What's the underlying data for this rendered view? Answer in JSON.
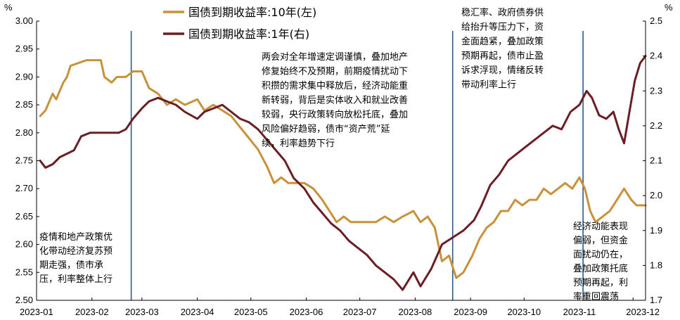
{
  "chart_data": {
    "type": "line",
    "title": "",
    "left_axis": {
      "unit": "%",
      "ylim": [
        2.5,
        3.0
      ],
      "ticks": [
        "2.50",
        "2.55",
        "2.60",
        "2.65",
        "2.70",
        "2.75",
        "2.80",
        "2.85",
        "2.90",
        "2.95",
        "3.00"
      ]
    },
    "right_axis": {
      "unit": "%",
      "ylim": [
        1.7,
        2.5
      ],
      "ticks": [
        "1.7",
        "1.8",
        "1.9",
        "2.0",
        "2.1",
        "2.2",
        "2.3",
        "2.4",
        "2.5"
      ]
    },
    "x_ticks": [
      "2023-01",
      "2023-02",
      "2023-03",
      "2023-04",
      "2023-05",
      "2023-06",
      "2023-07",
      "2023-08",
      "2023-09",
      "2023-10",
      "2023-11",
      "2023-12"
    ],
    "x_range": [
      "2023-01-01",
      "2023-12-08"
    ],
    "colors": {
      "series_10y": "#c8913a",
      "series_1y": "#6b1f24",
      "divider": "#2f5a86"
    },
    "series": [
      {
        "name": "国债到期收益率:10年(左)",
        "axis": "left",
        "points": [
          [
            "2023-01-03",
            2.83
          ],
          [
            "2023-01-06",
            2.84
          ],
          [
            "2023-01-10",
            2.87
          ],
          [
            "2023-01-12",
            2.86
          ],
          [
            "2023-01-16",
            2.89
          ],
          [
            "2023-01-18",
            2.9
          ],
          [
            "2023-01-20",
            2.92
          ],
          [
            "2023-01-29",
            2.93
          ],
          [
            "2023-02-06",
            2.93
          ],
          [
            "2023-02-08",
            2.9
          ],
          [
            "2023-02-12",
            2.89
          ],
          [
            "2023-02-15",
            2.9
          ],
          [
            "2023-02-20",
            2.9
          ],
          [
            "2023-02-24",
            2.91
          ],
          [
            "2023-03-01",
            2.91
          ],
          [
            "2023-03-05",
            2.88
          ],
          [
            "2023-03-10",
            2.87
          ],
          [
            "2023-03-15",
            2.85
          ],
          [
            "2023-03-20",
            2.86
          ],
          [
            "2023-03-25",
            2.85
          ],
          [
            "2023-04-01",
            2.86
          ],
          [
            "2023-04-05",
            2.84
          ],
          [
            "2023-04-10",
            2.85
          ],
          [
            "2023-04-15",
            2.84
          ],
          [
            "2023-04-20",
            2.83
          ],
          [
            "2023-04-25",
            2.81
          ],
          [
            "2023-04-30",
            2.79
          ],
          [
            "2023-05-05",
            2.77
          ],
          [
            "2023-05-10",
            2.74
          ],
          [
            "2023-05-14",
            2.71
          ],
          [
            "2023-05-18",
            2.72
          ],
          [
            "2023-05-22",
            2.71
          ],
          [
            "2023-05-26",
            2.71
          ],
          [
            "2023-05-31",
            2.71
          ],
          [
            "2023-06-05",
            2.7
          ],
          [
            "2023-06-10",
            2.68
          ],
          [
            "2023-06-14",
            2.66
          ],
          [
            "2023-06-18",
            2.64
          ],
          [
            "2023-06-22",
            2.65
          ],
          [
            "2023-06-26",
            2.64
          ],
          [
            "2023-06-30",
            2.64
          ],
          [
            "2023-07-05",
            2.64
          ],
          [
            "2023-07-10",
            2.64
          ],
          [
            "2023-07-15",
            2.65
          ],
          [
            "2023-07-20",
            2.64
          ],
          [
            "2023-07-25",
            2.65
          ],
          [
            "2023-07-31",
            2.66
          ],
          [
            "2023-08-04",
            2.64
          ],
          [
            "2023-08-08",
            2.65
          ],
          [
            "2023-08-12",
            2.63
          ],
          [
            "2023-08-16",
            2.57
          ],
          [
            "2023-08-20",
            2.58
          ],
          [
            "2023-08-24",
            2.54
          ],
          [
            "2023-08-28",
            2.55
          ],
          [
            "2023-09-02",
            2.58
          ],
          [
            "2023-09-06",
            2.61
          ],
          [
            "2023-09-10",
            2.63
          ],
          [
            "2023-09-14",
            2.64
          ],
          [
            "2023-09-18",
            2.66
          ],
          [
            "2023-09-22",
            2.66
          ],
          [
            "2023-09-26",
            2.68
          ],
          [
            "2023-09-30",
            2.67
          ],
          [
            "2023-10-04",
            2.68
          ],
          [
            "2023-10-08",
            2.68
          ],
          [
            "2023-10-12",
            2.7
          ],
          [
            "2023-10-16",
            2.69
          ],
          [
            "2023-10-20",
            2.7
          ],
          [
            "2023-10-24",
            2.71
          ],
          [
            "2023-10-28",
            2.7
          ],
          [
            "2023-11-01",
            2.72
          ],
          [
            "2023-11-04",
            2.7
          ],
          [
            "2023-11-07",
            2.66
          ],
          [
            "2023-11-10",
            2.64
          ],
          [
            "2023-11-14",
            2.65
          ],
          [
            "2023-11-18",
            2.66
          ],
          [
            "2023-11-22",
            2.68
          ],
          [
            "2023-11-26",
            2.7
          ],
          [
            "2023-11-30",
            2.68
          ],
          [
            "2023-12-03",
            2.67
          ],
          [
            "2023-12-08",
            2.67
          ]
        ]
      },
      {
        "name": "国债到期收益率:1年(右)",
        "axis": "right",
        "points": [
          [
            "2023-01-03",
            2.1
          ],
          [
            "2023-01-06",
            2.08
          ],
          [
            "2023-01-10",
            2.09
          ],
          [
            "2023-01-14",
            2.11
          ],
          [
            "2023-01-18",
            2.12
          ],
          [
            "2023-01-22",
            2.13
          ],
          [
            "2023-01-26",
            2.17
          ],
          [
            "2023-01-31",
            2.18
          ],
          [
            "2023-02-04",
            2.18
          ],
          [
            "2023-02-08",
            2.18
          ],
          [
            "2023-02-12",
            2.18
          ],
          [
            "2023-02-16",
            2.18
          ],
          [
            "2023-02-20",
            2.19
          ],
          [
            "2023-02-24",
            2.22
          ],
          [
            "2023-03-01",
            2.25
          ],
          [
            "2023-03-05",
            2.27
          ],
          [
            "2023-03-10",
            2.28
          ],
          [
            "2023-03-15",
            2.27
          ],
          [
            "2023-03-20",
            2.26
          ],
          [
            "2023-03-25",
            2.24
          ],
          [
            "2023-04-01",
            2.22
          ],
          [
            "2023-04-05",
            2.24
          ],
          [
            "2023-04-10",
            2.25
          ],
          [
            "2023-04-15",
            2.26
          ],
          [
            "2023-04-20",
            2.24
          ],
          [
            "2023-04-25",
            2.22
          ],
          [
            "2023-04-30",
            2.21
          ],
          [
            "2023-05-05",
            2.19
          ],
          [
            "2023-05-10",
            2.16
          ],
          [
            "2023-05-15",
            2.13
          ],
          [
            "2023-05-20",
            2.1
          ],
          [
            "2023-05-25",
            2.05
          ],
          [
            "2023-05-31",
            2.02
          ],
          [
            "2023-06-05",
            1.98
          ],
          [
            "2023-06-10",
            1.95
          ],
          [
            "2023-06-15",
            1.92
          ],
          [
            "2023-06-20",
            1.9
          ],
          [
            "2023-06-25",
            1.87
          ],
          [
            "2023-06-30",
            1.85
          ],
          [
            "2023-07-05",
            1.83
          ],
          [
            "2023-07-10",
            1.8
          ],
          [
            "2023-07-15",
            1.78
          ],
          [
            "2023-07-20",
            1.76
          ],
          [
            "2023-07-25",
            1.73
          ],
          [
            "2023-07-31",
            1.78
          ],
          [
            "2023-08-04",
            1.74
          ],
          [
            "2023-08-10",
            1.79
          ],
          [
            "2023-08-16",
            1.86
          ],
          [
            "2023-08-22",
            1.88
          ],
          [
            "2023-08-28",
            1.9
          ],
          [
            "2023-09-03",
            1.93
          ],
          [
            "2023-09-07",
            1.97
          ],
          [
            "2023-09-12",
            2.03
          ],
          [
            "2023-09-17",
            2.06
          ],
          [
            "2023-09-22",
            2.1
          ],
          [
            "2023-09-27",
            2.12
          ],
          [
            "2023-10-02",
            2.14
          ],
          [
            "2023-10-07",
            2.16
          ],
          [
            "2023-10-12",
            2.18
          ],
          [
            "2023-10-17",
            2.2
          ],
          [
            "2023-10-22",
            2.19
          ],
          [
            "2023-10-27",
            2.24
          ],
          [
            "2023-11-01",
            2.26
          ],
          [
            "2023-11-05",
            2.3
          ],
          [
            "2023-11-08",
            2.28
          ],
          [
            "2023-11-12",
            2.23
          ],
          [
            "2023-11-16",
            2.22
          ],
          [
            "2023-11-20",
            2.24
          ],
          [
            "2023-11-23",
            2.19
          ],
          [
            "2023-11-26",
            2.15
          ],
          [
            "2023-11-29",
            2.24
          ],
          [
            "2023-12-02",
            2.33
          ],
          [
            "2023-12-05",
            2.38
          ],
          [
            "2023-12-08",
            2.4
          ]
        ]
      }
    ],
    "dividers": [
      "2023-02-23",
      "2023-08-22",
      "2023-11-03"
    ],
    "annotations": [
      {
        "id": "ann1",
        "lines": [
          "疫情和地产政策优",
          "化带动经济复苏预",
          "期走强，债市承",
          "压，利率整体上行"
        ]
      },
      {
        "id": "ann2",
        "lines": [
          "两会对全年增速定调谨慎，叠加地产",
          "修复始终不及预期，前期疫情扰动下",
          "积攒的需求集中释放后，经济动能重",
          "新转弱，背后是实体收入和就业改善",
          "较弱，央行政策转向放松托底，叠加",
          "风险偏好趋弱，债市“资产荒”延",
          "续，利率趋势下行"
        ]
      },
      {
        "id": "ann3",
        "lines": [
          "稳汇率、政府债券供",
          "给抬升等压力下，资",
          "金面趋紧，叠加政策",
          "预期再起，债市止盈",
          "诉求浮现，情绪反转",
          "带动利率上行"
        ]
      },
      {
        "id": "ann4",
        "lines": [
          "经济动能表现",
          "偏弱，但资金",
          "面扰动仍在，",
          "叠加政策托底",
          "预期再起，利",
          "率重回震荡"
        ]
      }
    ]
  }
}
